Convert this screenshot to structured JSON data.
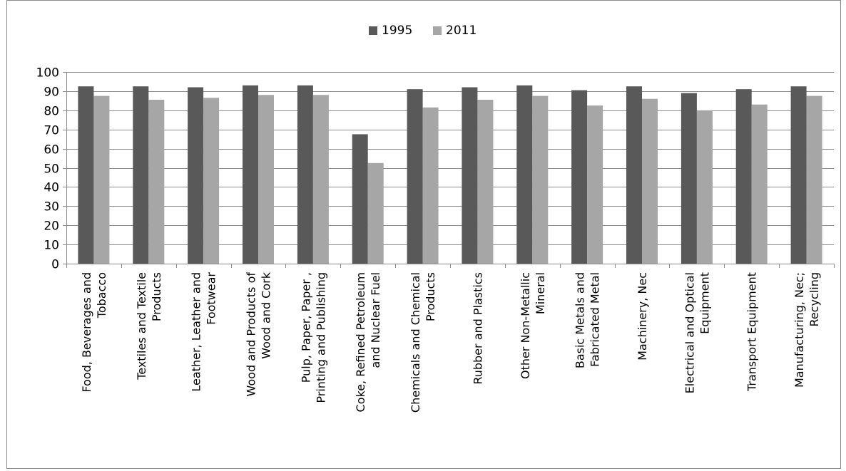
{
  "chart_data": {
    "type": "bar",
    "categories": [
      [
        "Food, Beverages and",
        "Tobacco"
      ],
      [
        "Textiles and Textile",
        "Products"
      ],
      [
        "Leather, Leather and",
        "Footwear"
      ],
      [
        "Wood and Products of",
        "Wood and Cork"
      ],
      [
        "Pulp, Paper, Paper ,",
        "Printing and Publishing"
      ],
      [
        "Coke, Refined Petroleum",
        "and Nuclear Fuel"
      ],
      [
        "Chemicals and Chemical",
        "Products"
      ],
      [
        "Rubber and Plastics"
      ],
      [
        "Other Non-Metallic",
        "Mineral"
      ],
      [
        "Basic Metals and",
        "Fabricated Metal"
      ],
      [
        "Machinery, Nec"
      ],
      [
        "Electrical and Optical",
        "Equipment"
      ],
      [
        "Transport Equipment"
      ],
      [
        "Manufacturing, Nec;",
        "Recycling"
      ]
    ],
    "series": [
      {
        "name": "1995",
        "color": "#595959",
        "values": [
          92.5,
          92.5,
          92,
          93,
          93,
          67.5,
          91,
          92,
          93,
          90.5,
          92.5,
          89,
          91,
          92.5
        ]
      },
      {
        "name": "2011",
        "color": "#a6a6a6",
        "values": [
          87.5,
          85.5,
          86.5,
          88,
          88,
          52.5,
          81.5,
          85.5,
          87.5,
          82.5,
          86,
          80,
          83,
          87.5
        ]
      }
    ],
    "yticks": [
      0,
      10,
      20,
      30,
      40,
      50,
      60,
      70,
      80,
      90,
      100
    ],
    "ylim": [
      0,
      100
    ],
    "grid": true,
    "legend_position": "top-center",
    "gridline_color": "#8c8c8c"
  }
}
